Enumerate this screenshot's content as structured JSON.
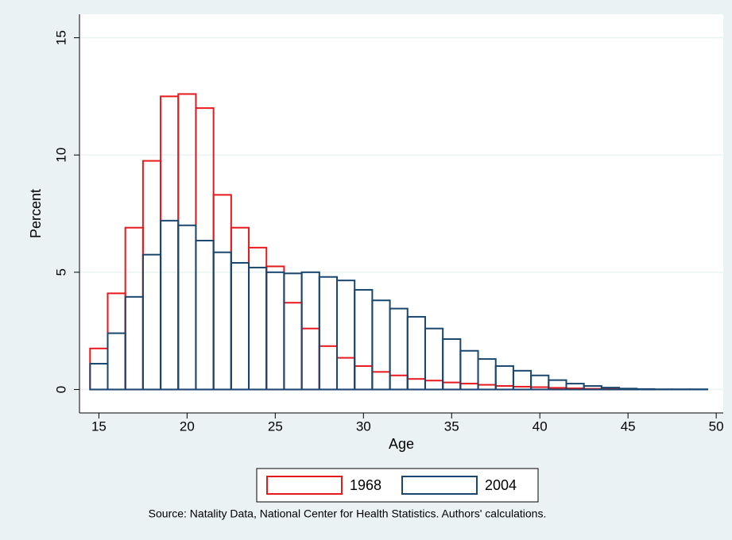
{
  "chart_data": {
    "type": "histogram",
    "bins": [
      14.5,
      15.5,
      16.5,
      17.5,
      18.5,
      19.5,
      20.5,
      21.5,
      22.5,
      23.5,
      24.5,
      25.5,
      26.5,
      27.5,
      28.5,
      29.5,
      30.5,
      31.5,
      32.5,
      33.5,
      34.5,
      35.5,
      36.5,
      37.5,
      38.5,
      39.5,
      40.5,
      41.5,
      42.5,
      43.5,
      44.5,
      45.5,
      46.5,
      47.5,
      48.5,
      49.5
    ],
    "series": [
      {
        "name": "1968",
        "color": "#e8191c",
        "values": [
          1.75,
          4.1,
          6.9,
          9.75,
          12.5,
          12.6,
          12.0,
          8.3,
          6.9,
          6.05,
          5.25,
          3.7,
          2.6,
          1.85,
          1.35,
          1.0,
          0.75,
          0.6,
          0.45,
          0.38,
          0.3,
          0.25,
          0.2,
          0.15,
          0.12,
          0.1,
          0.07,
          0.05,
          0.03,
          0.02,
          0.01,
          0.01,
          0,
          0,
          0
        ]
      },
      {
        "name": "2004",
        "color": "#1a476f",
        "values": [
          1.1,
          2.4,
          3.95,
          5.75,
          7.2,
          7.0,
          6.35,
          5.85,
          5.4,
          5.2,
          5.0,
          4.95,
          5.0,
          4.8,
          4.65,
          4.25,
          3.8,
          3.45,
          3.1,
          2.6,
          2.15,
          1.65,
          1.3,
          1.0,
          0.8,
          0.6,
          0.4,
          0.25,
          0.15,
          0.08,
          0.04,
          0.02,
          0.01,
          0.01,
          0.01
        ]
      }
    ],
    "x_label": "Age",
    "y_label": "Percent",
    "xlim": [
      13.9,
      50.4
    ],
    "ylim": [
      -1,
      16
    ],
    "xticks": [
      15,
      20,
      25,
      30,
      35,
      40,
      45,
      50
    ],
    "yticks": [
      0,
      5,
      10,
      15
    ],
    "grid": true,
    "legend": "bottom",
    "note": "Source: Natality Data, National Center for Health Statistics. Authors' calculations."
  }
}
